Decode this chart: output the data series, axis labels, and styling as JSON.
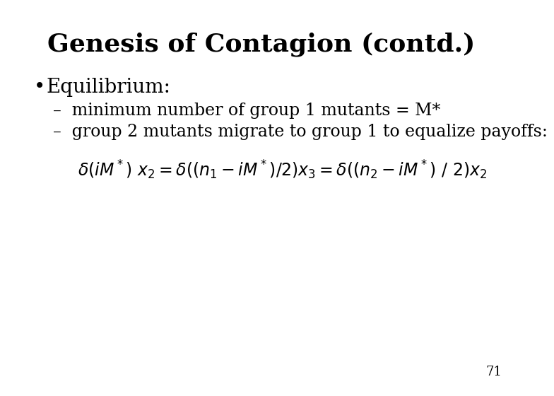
{
  "title": "Genesis of Contagion (contd.)",
  "title_fontsize": 26,
  "title_fontweight": "bold",
  "background_color": "#ffffff",
  "text_color": "#000000",
  "bullet": "•",
  "bullet_text": "Equilibrium:",
  "bullet_fontsize": 20,
  "dash1": "–  minimum number of group 1 mutants = M*",
  "dash2": "–  group 2 mutants migrate to group 1 to equalize payoffs:",
  "dash_fontsize": 17,
  "equation_fontsize": 17,
  "page_number": "71",
  "page_fontsize": 13
}
